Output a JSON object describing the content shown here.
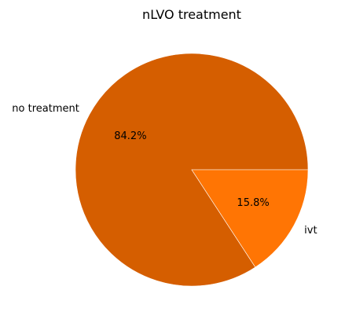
{
  "chart_data": {
    "type": "pie",
    "title": "nLVO treatment",
    "slices": [
      {
        "label": "no treatment",
        "value": 84.2,
        "pct_label": "84.2%",
        "color": "#d55e00"
      },
      {
        "label": "ivt",
        "value": 15.8,
        "pct_label": "15.8%",
        "color": "#ff7504"
      }
    ],
    "start_angle_deg": 0,
    "direction": "counterclockwise"
  }
}
